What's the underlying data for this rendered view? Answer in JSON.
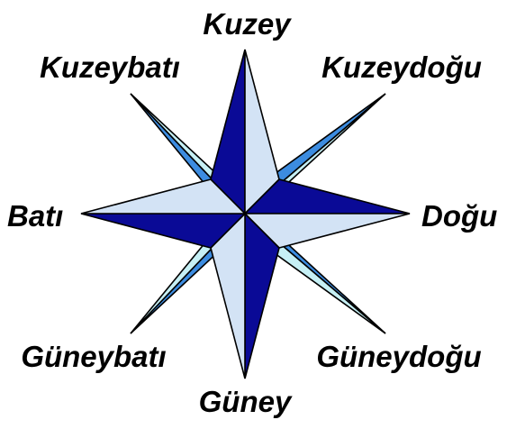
{
  "labels": {
    "north": "Kuzey",
    "northeast": "Kuzeydoğu",
    "east": "Doğu",
    "southeast": "Güneydoğu",
    "south": "Güney",
    "southwest": "Güneybatı",
    "west": "Batı",
    "northwest": "Kuzeybatı"
  },
  "colors": {
    "dark": "#0a0a96",
    "light": "#d3e3f5",
    "mid": "#3c8ce0",
    "pale": "#c6f0f5",
    "outline": "#000000"
  }
}
